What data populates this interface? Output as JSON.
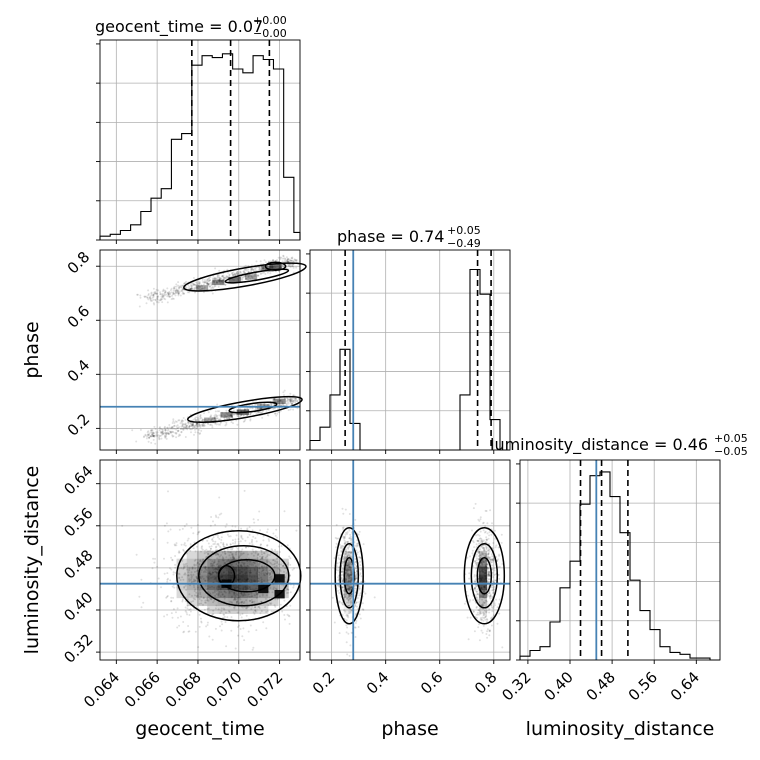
{
  "chart_data": {
    "type": "corner",
    "parameters": [
      "geocent_time",
      "phase",
      "luminosity_distance"
    ],
    "truth": {
      "phase": 0.28,
      "luminosity_distance": 0.45
    },
    "grid": true,
    "panels": {
      "geocent_time": {
        "title": {
          "main": "geocent_time = 0.07",
          "sup": "+0.00",
          "sub": "−0.00"
        },
        "range": [
          0.0632,
          0.073
        ],
        "ticks": [
          0.064,
          0.066,
          0.068,
          0.07,
          0.072
        ],
        "tick_labels": [
          "0.064",
          "0.066",
          "0.068",
          "0.070",
          "0.072"
        ],
        "quantiles": [
          0.0677,
          0.0696,
          0.0715
        ],
        "hist_bins": [
          0.0632,
          0.0637,
          0.0642,
          0.0647,
          0.0652,
          0.0657,
          0.0662,
          0.0667,
          0.0672,
          0.0677,
          0.0682,
          0.0687,
          0.0692,
          0.0697,
          0.0702,
          0.0707,
          0.0712,
          0.0717,
          0.0722,
          0.0727,
          0.073
        ],
        "hist_counts": [
          0.02,
          0.03,
          0.05,
          0.08,
          0.15,
          0.22,
          0.27,
          0.53,
          0.56,
          0.92,
          0.97,
          0.96,
          0.98,
          0.9,
          0.88,
          0.97,
          0.95,
          0.9,
          0.33,
          0.04
        ]
      },
      "phase": {
        "title": {
          "main": "phase = 0.74",
          "sup": "+0.05",
          "sub": "−0.49"
        },
        "range": [
          0.12,
          0.86
        ],
        "ticks": [
          0.2,
          0.4,
          0.6,
          0.8
        ],
        "tick_labels": [
          "0.2",
          "0.4",
          "0.6",
          "0.8"
        ],
        "quantiles": [
          0.25,
          0.74,
          0.79
        ],
        "hist_bins": [
          0.12,
          0.157,
          0.194,
          0.231,
          0.268,
          0.305,
          0.342,
          0.379,
          0.416,
          0.453,
          0.49,
          0.527,
          0.564,
          0.601,
          0.638,
          0.675,
          0.712,
          0.749,
          0.786,
          0.823,
          0.86
        ],
        "hist_counts": [
          0.05,
          0.12,
          0.29,
          0.53,
          0.14,
          0.0,
          0.0,
          0.0,
          0.0,
          0.0,
          0.0,
          0.0,
          0.0,
          0.0,
          0.0,
          0.29,
          0.95,
          0.82,
          0.16,
          0.0
        ]
      },
      "luminosity_distance": {
        "title": {
          "main": "luminosity_distance = 0.46",
          "sup": "+0.05",
          "sub": "−0.05"
        },
        "range": [
          0.305,
          0.685
        ],
        "ticks": [
          0.32,
          0.4,
          0.48,
          0.56,
          0.64
        ],
        "tick_labels": [
          "0.32",
          "0.40",
          "0.48",
          "0.56",
          "0.64"
        ],
        "quantiles": [
          0.42,
          0.46,
          0.51
        ],
        "hist_bins": [
          0.305,
          0.324,
          0.343,
          0.362,
          0.381,
          0.4,
          0.419,
          0.438,
          0.457,
          0.476,
          0.495,
          0.514,
          0.533,
          0.552,
          0.571,
          0.59,
          0.609,
          0.628,
          0.647,
          0.666,
          0.685
        ],
        "hist_counts": [
          0.02,
          0.05,
          0.07,
          0.2,
          0.38,
          0.52,
          0.82,
          0.97,
          0.99,
          0.86,
          0.67,
          0.42,
          0.26,
          0.16,
          0.07,
          0.04,
          0.03,
          0.01,
          0.01,
          0.0
        ]
      }
    },
    "axis_labels": {
      "x": [
        "geocent_time",
        "phase",
        "luminosity_distance"
      ],
      "y": [
        "phase",
        "luminosity_distance"
      ]
    },
    "density_2d": {
      "phase_vs_geocent_time": {
        "modes": [
          {
            "x": [
              0.0654,
              0.0726
            ],
            "y": [
              0.68,
              0.83
            ],
            "cells": [
              [
                0.0682,
                0.72
              ],
              [
                0.069,
                0.74
              ],
              [
                0.0698,
                0.75
              ],
              [
                0.0706,
                0.76
              ],
              [
                0.0714,
                0.79
              ],
              [
                0.0718,
                0.8
              ]
            ]
          },
          {
            "x": [
              0.0654,
              0.073
            ],
            "y": [
              0.16,
              0.31
            ],
            "cells": [
              [
                0.0686,
                0.23
              ],
              [
                0.0694,
                0.25
              ],
              [
                0.0702,
                0.26
              ],
              [
                0.0712,
                0.28
              ],
              [
                0.072,
                0.3
              ]
            ]
          }
        ]
      },
      "luminosity_distance_vs_geocent_time": {
        "center": [
          0.0697,
          0.46
        ],
        "spread": [
          0.0017,
          0.045
        ]
      },
      "luminosity_distance_vs_phase": {
        "modes": [
          {
            "center": [
              0.26,
              0.46
            ],
            "spread": [
              0.03,
              0.05
            ]
          },
          {
            "center": [
              0.76,
              0.46
            ],
            "spread": [
              0.035,
              0.05
            ]
          }
        ]
      }
    }
  }
}
